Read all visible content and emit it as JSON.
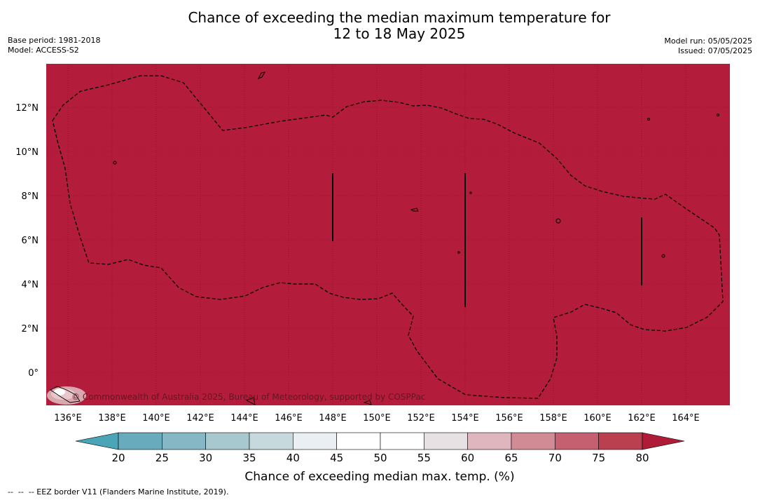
{
  "title_line1": "Chance of exceeding the median maximum temperature for",
  "title_line2": "12 to 18 May 2025",
  "base_period": "Base period: 1981-2018",
  "model": "Model: ACCESS-S2",
  "model_run": "Model run: 05/05/2025",
  "issued": "Issued: 07/05/2025",
  "copyright": "© Commonwealth of Australia 2025, Bureau of Meteorology, supported by COSPPac",
  "lat_labels": [
    "12°N",
    "10°N",
    "8°N",
    "6°N",
    "4°N",
    "2°N",
    "0°"
  ],
  "lon_labels": [
    "136°E",
    "138°E",
    "140°E",
    "142°E",
    "144°E",
    "146°E",
    "148°E",
    "150°E",
    "152°E",
    "154°E",
    "156°E",
    "158°E",
    "160°E",
    "162°E",
    "164°E"
  ],
  "colorbar": {
    "ticks": [
      "20",
      "25",
      "30",
      "35",
      "40",
      "45",
      "50",
      "55",
      "60",
      "65",
      "70",
      "75",
      "80"
    ],
    "colors": [
      "#67abbd",
      "#86b7c5",
      "#a7c8ce",
      "#c6d9dd",
      "#e9eff2",
      "#ffffff",
      "#ffffff",
      "#e7e1e3",
      "#dfb6bd",
      "#d18b95",
      "#c4606f",
      "#ba404f"
    ],
    "under_color": "#4aa5b8",
    "over_color": "#b01b38",
    "label": "Chance of exceeding median max. temp. (%)"
  },
  "map": {
    "fill_color": "#b31c3a",
    "dominant_category": "80+"
  },
  "footer": "--  --  -- EEZ border V11 (Flanders Marine Institute, 2019)."
}
